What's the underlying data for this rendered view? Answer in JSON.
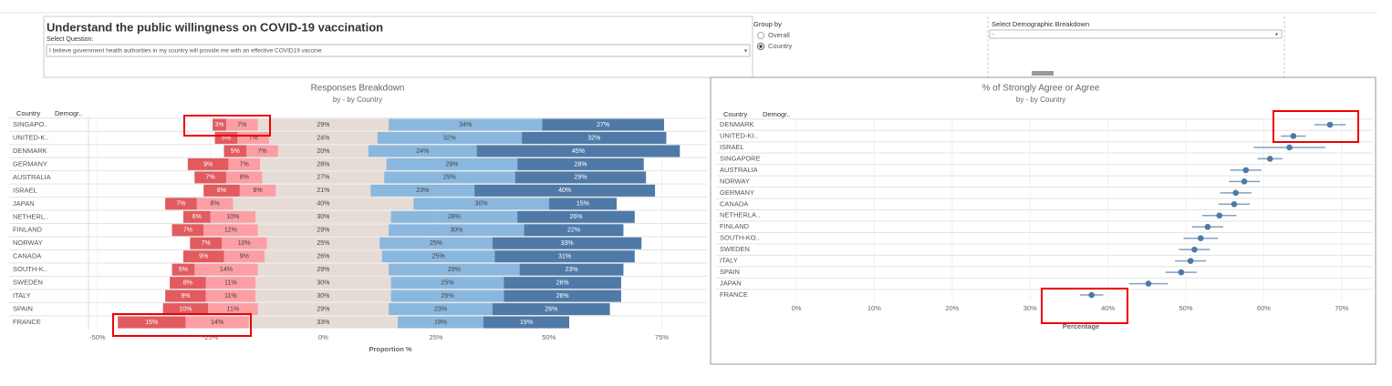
{
  "header": {
    "title": "Understand the public willingness on COVID-19 vaccination",
    "question_label": "Select Question:",
    "question": "I believe government health authorities in my country will provide me with an effective COVID19 vaccine",
    "group_by_label": "Group by",
    "group_by_options": [
      "Overall",
      "Country"
    ],
    "demographic_label": "Select Demographic Breakdown",
    "demographic_value": "-"
  },
  "chart_data": [
    {
      "type": "bar",
      "orientation": "horizontal",
      "title": "Responses Breakdown",
      "subtitle": "by - by Country",
      "column_headers": [
        "Country",
        "Demogr.."
      ],
      "x_label": "Proportion %",
      "categories": [
        "SINGAPO..",
        "UNITED-K..",
        "DENMARK",
        "GERMANY",
        "AUSTRALIA",
        "ISRAEL",
        "JAPAN",
        "NETHERL..",
        "FINLAND",
        "NORWAY",
        "CANADA",
        "SOUTH-K..",
        "SWEDEN",
        "ITALY",
        "SPAIN",
        "FRANCE"
      ],
      "series": [
        {
          "color": "#e15b5f",
          "values": [
            3,
            5,
            5,
            9,
            7,
            8,
            7,
            6,
            7,
            7,
            9,
            5,
            8,
            9,
            10,
            15
          ],
          "value_labels": [
            "3%",
            "5%",
            "5%",
            "9%",
            "7%",
            "8%",
            "7%",
            "6%",
            "7%",
            "7%",
            "9%",
            "5%",
            "8%",
            "9%",
            "10%",
            "15%"
          ]
        },
        {
          "color": "#fc9ea3",
          "values": [
            7,
            7,
            7,
            7,
            8,
            8,
            8,
            10,
            12,
            10,
            9,
            14,
            11,
            11,
            11,
            14
          ],
          "value_labels": [
            "7%",
            "7%",
            "7%",
            "7%",
            "8%",
            "8%",
            "8%",
            "10%",
            "12%",
            "10%",
            "9%",
            "14%",
            "11%",
            "11%",
            "11%",
            "14%"
          ]
        },
        {
          "color": "#e6dbd5",
          "values": [
            29,
            24,
            20,
            28,
            27,
            21,
            40,
            30,
            29,
            25,
            26,
            29,
            30,
            30,
            29,
            33
          ],
          "value_labels": [
            "29%",
            "24%",
            "20%",
            "28%",
            "27%",
            "21%",
            "40%",
            "30%",
            "29%",
            "25%",
            "26%",
            "29%",
            "30%",
            "30%",
            "29%",
            "33%"
          ]
        },
        {
          "color": "#8ab7dd",
          "values": [
            34,
            32,
            24,
            29,
            29,
            23,
            30,
            28,
            30,
            25,
            25,
            29,
            25,
            25,
            23,
            19
          ],
          "value_labels": [
            "34%",
            "32%",
            "24%",
            "29%",
            "29%",
            "23%",
            "30%",
            "28%",
            "30%",
            "25%",
            "25%",
            "29%",
            "25%",
            "25%",
            "23%",
            "19%"
          ]
        },
        {
          "color": "#4f7aa8",
          "values": [
            27,
            32,
            45,
            28,
            29,
            40,
            15,
            26,
            22,
            33,
            31,
            23,
            26,
            26,
            26,
            19
          ],
          "value_labels": [
            "27%",
            "32%",
            "45%",
            "28%",
            "29%",
            "40%",
            "15%",
            "26%",
            "22%",
            "33%",
            "31%",
            "23%",
            "26%",
            "26%",
            "26%",
            "19%"
          ]
        }
      ],
      "xlim": [
        -52,
        85
      ],
      "xticks": [
        {
          "value": -50,
          "label": "-50%"
        },
        {
          "value": -25,
          "label": "-25%"
        },
        {
          "value": 0,
          "label": "0%"
        },
        {
          "value": 25,
          "label": "25%"
        },
        {
          "value": 50,
          "label": "50%"
        },
        {
          "value": 75,
          "label": "75%"
        }
      ]
    },
    {
      "type": "dot",
      "title": "% of Strongly Agree or Agree",
      "subtitle": "by - by Country",
      "column_headers": [
        "Country",
        "Demogr.."
      ],
      "x_label": "Percentage",
      "color": "#4e79a7",
      "categories": [
        "DENMARK",
        "UNITED-KI..",
        "ISRAEL",
        "SINGAPORE",
        "AUSTRALIA",
        "NORWAY",
        "GERMANY",
        "CANADA",
        "NETHERLA..",
        "FINLAND",
        "SOUTH-KO..",
        "SWEDEN",
        "ITALY",
        "SPAIN",
        "JAPAN",
        "FRANCE"
      ],
      "values": [
        68.5,
        63.8,
        63.3,
        60.8,
        57.7,
        57.5,
        56.4,
        56.2,
        54.3,
        52.8,
        51.9,
        51.1,
        50.6,
        49.4,
        45.2,
        37.9
      ],
      "errors": [
        2,
        1.6,
        4.6,
        1.6,
        2,
        2,
        2,
        2,
        2.2,
        2,
        2.2,
        2,
        2,
        2,
        2.5,
        1.5
      ],
      "xlim": [
        0,
        74
      ],
      "xticks": [
        {
          "value": 0,
          "label": "0%"
        },
        {
          "value": 10,
          "label": "10%"
        },
        {
          "value": 20,
          "label": "20%"
        },
        {
          "value": 30,
          "label": "30%"
        },
        {
          "value": 40,
          "label": "40%"
        },
        {
          "value": 50,
          "label": "50%"
        },
        {
          "value": 60,
          "label": "60%"
        },
        {
          "value": 70,
          "label": "70%"
        }
      ]
    }
  ]
}
